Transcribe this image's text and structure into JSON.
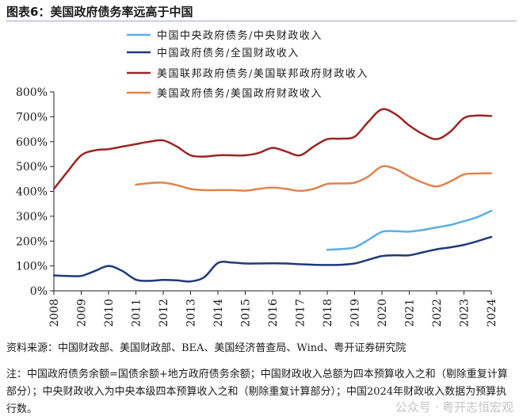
{
  "header": {
    "title": "图表6：美国政府债务率远高于中国"
  },
  "chart_data": {
    "type": "line",
    "x": [
      2008,
      2009,
      2010,
      2011,
      2012,
      2013,
      2014,
      2015,
      2016,
      2017,
      2018,
      2019,
      2020,
      2021,
      2022,
      2023,
      2024
    ],
    "x_tick_labels": [
      "2008",
      "2009",
      "2010",
      "2011",
      "2012",
      "2013",
      "2014",
      "2015",
      "2016",
      "2017",
      "2018",
      "2019",
      "2020",
      "2021",
      "2022",
      "2023",
      "2024"
    ],
    "ylim": [
      0,
      800
    ],
    "y_ticks": [
      0,
      100,
      200,
      300,
      400,
      500,
      600,
      700,
      800
    ],
    "y_tick_labels": [
      "0%",
      "100%",
      "200%",
      "300%",
      "400%",
      "500%",
      "600%",
      "700%",
      "800%"
    ],
    "grid": false,
    "legend_position": "top",
    "series": [
      {
        "name": "中国中央政府债务/中央财政收入",
        "color": "#5aaee6",
        "x": [
          2018,
          2018.5,
          2019,
          2019.5,
          2020,
          2020.5,
          2021,
          2021.5,
          2022,
          2022.5,
          2023,
          2023.5,
          2024
        ],
        "values": [
          165,
          168,
          175,
          205,
          237,
          240,
          238,
          245,
          255,
          265,
          280,
          297,
          322
        ]
      },
      {
        "name": "中国政府债务/全国财政收入",
        "color": "#1f3a7a",
        "x": [
          2008,
          2008.5,
          2009,
          2009.5,
          2010,
          2010.5,
          2011,
          2011.5,
          2012,
          2012.5,
          2013,
          2013.5,
          2014,
          2014.5,
          2015,
          2015.5,
          2016,
          2016.5,
          2017,
          2017.5,
          2018,
          2018.5,
          2019,
          2019.5,
          2020,
          2020.5,
          2021,
          2021.5,
          2022,
          2022.5,
          2023,
          2023.5,
          2024
        ],
        "values": [
          62,
          60,
          60,
          80,
          100,
          80,
          45,
          40,
          44,
          42,
          38,
          55,
          112,
          114,
          110,
          110,
          111,
          110,
          107,
          105,
          104,
          105,
          110,
          125,
          140,
          143,
          143,
          155,
          167,
          175,
          185,
          200,
          217
        ]
      },
      {
        "name": "美国联邦政府债务/美国联邦政府财政收入",
        "color": "#9b2423",
        "x": [
          2008,
          2008.5,
          2009,
          2009.5,
          2010,
          2010.5,
          2011,
          2011.5,
          2012,
          2012.5,
          2013,
          2013.5,
          2014,
          2014.5,
          2015,
          2015.5,
          2016,
          2016.5,
          2017,
          2017.5,
          2018,
          2018.5,
          2019,
          2019.5,
          2020,
          2020.5,
          2021,
          2021.5,
          2022,
          2022.5,
          2023,
          2023.5,
          2024
        ],
        "values": [
          410,
          480,
          545,
          565,
          570,
          580,
          590,
          600,
          605,
          580,
          545,
          540,
          545,
          545,
          545,
          555,
          575,
          560,
          545,
          580,
          610,
          612,
          620,
          680,
          730,
          710,
          665,
          630,
          610,
          640,
          695,
          705,
          703
        ]
      },
      {
        "name": "美国政府债务/美国政府财政收入",
        "color": "#e0834e",
        "x": [
          2011,
          2011.5,
          2012,
          2012.5,
          2013,
          2013.5,
          2014,
          2014.5,
          2015,
          2015.5,
          2016,
          2016.5,
          2017,
          2017.5,
          2018,
          2018.5,
          2019,
          2019.5,
          2020,
          2020.5,
          2021,
          2021.5,
          2022,
          2022.5,
          2023,
          2023.5,
          2024
        ],
        "values": [
          427,
          433,
          435,
          425,
          410,
          405,
          405,
          405,
          403,
          410,
          415,
          410,
          402,
          410,
          430,
          432,
          435,
          460,
          500,
          490,
          460,
          435,
          420,
          440,
          468,
          472,
          473
        ]
      }
    ]
  },
  "footer": {
    "source": "资料来源：中国财政部、美国财政部、BEA、美国经济普查局、Wind、粤开证券研究院",
    "note": "注：中国政府债务余额=国债余额+地方政府债务余额；中国财政收入总额为四本预算收入之和（剔除重复计算部分）；中央财政收入为中央本级四本预算收入之和（剔除重复计算部分）；中国2024年财政收入数据为预算执行数。",
    "watermark": "公众号 · 粤开志恒宏观"
  }
}
